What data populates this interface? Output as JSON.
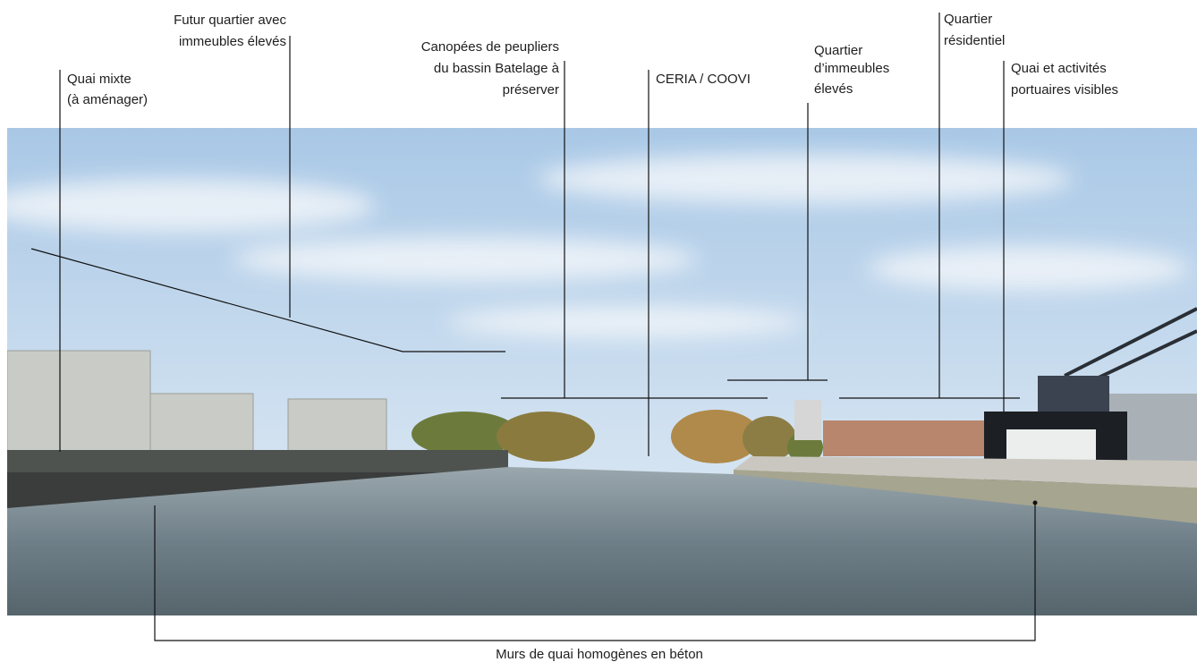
{
  "annotations": [
    {
      "lines": [
        "Quai mixte",
        "(à aménager)"
      ]
    },
    {
      "lines": [
        "Futur quartier avec",
        "immeubles élevés"
      ]
    },
    {
      "lines": [
        "Canopées de peupliers",
        "du bassin Batelage à",
        "préserver"
      ]
    },
    {
      "lines": [
        "CERIA / COOVI"
      ]
    },
    {
      "lines": [
        "Quartier",
        "d’immeubles",
        "élevés"
      ]
    },
    {
      "lines": [
        "Quartier",
        "résidentiel"
      ]
    },
    {
      "lines": [
        "Quai et activités",
        "portuaires visibles"
      ]
    },
    {
      "lines": [
        "Murs de quai homogènes en béton"
      ]
    }
  ]
}
